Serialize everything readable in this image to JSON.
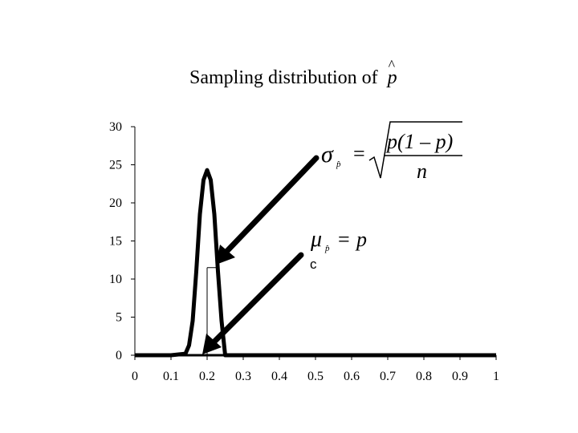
{
  "title": {
    "text": "Sampling distribution of",
    "symbol": "p",
    "hat": "^"
  },
  "annotations": {
    "sigma": {
      "symbol": "σ",
      "subscript": "p̂",
      "equals": "=",
      "numerator": "p(1 – p)",
      "denominator": "n"
    },
    "mu": {
      "symbol": "μ",
      "subscript": "p̂",
      "equals": "=",
      "rhs": "p"
    },
    "stray_label": "c"
  },
  "chart_data": {
    "type": "line",
    "title": "Sampling distribution of p̂",
    "xlabel": "",
    "ylabel": "",
    "xlim": [
      0,
      1
    ],
    "ylim": [
      0,
      30
    ],
    "x_ticks": [
      "0",
      "0.1",
      "0.2",
      "0.3",
      "0.4",
      "0.5",
      "0.6",
      "0.7",
      "0.8",
      "0.9",
      "1"
    ],
    "y_ticks": [
      "0",
      "5",
      "10",
      "15",
      "20",
      "25",
      "30"
    ],
    "grid": false,
    "legend": "none",
    "series": [
      {
        "x": [
          0,
          0.1,
          0.14,
          0.15,
          0.16,
          0.17,
          0.18,
          0.19,
          0.2,
          0.21,
          0.22,
          0.23,
          0.24,
          0.25,
          1
        ],
        "y": [
          0,
          0,
          0.2,
          1.3,
          4.5,
          11,
          18.5,
          23,
          24.3,
          23,
          18.5,
          11,
          4.5,
          0,
          0
        ]
      }
    ],
    "reference_line": {
      "x": 0.2,
      "y_from": 0,
      "y_to": 11.5
    },
    "sd_marker": {
      "x_from": 0.2,
      "x_to": 0.23,
      "y": 11.5
    },
    "colors": {
      "line": "#000000",
      "axis": "#000000"
    }
  }
}
